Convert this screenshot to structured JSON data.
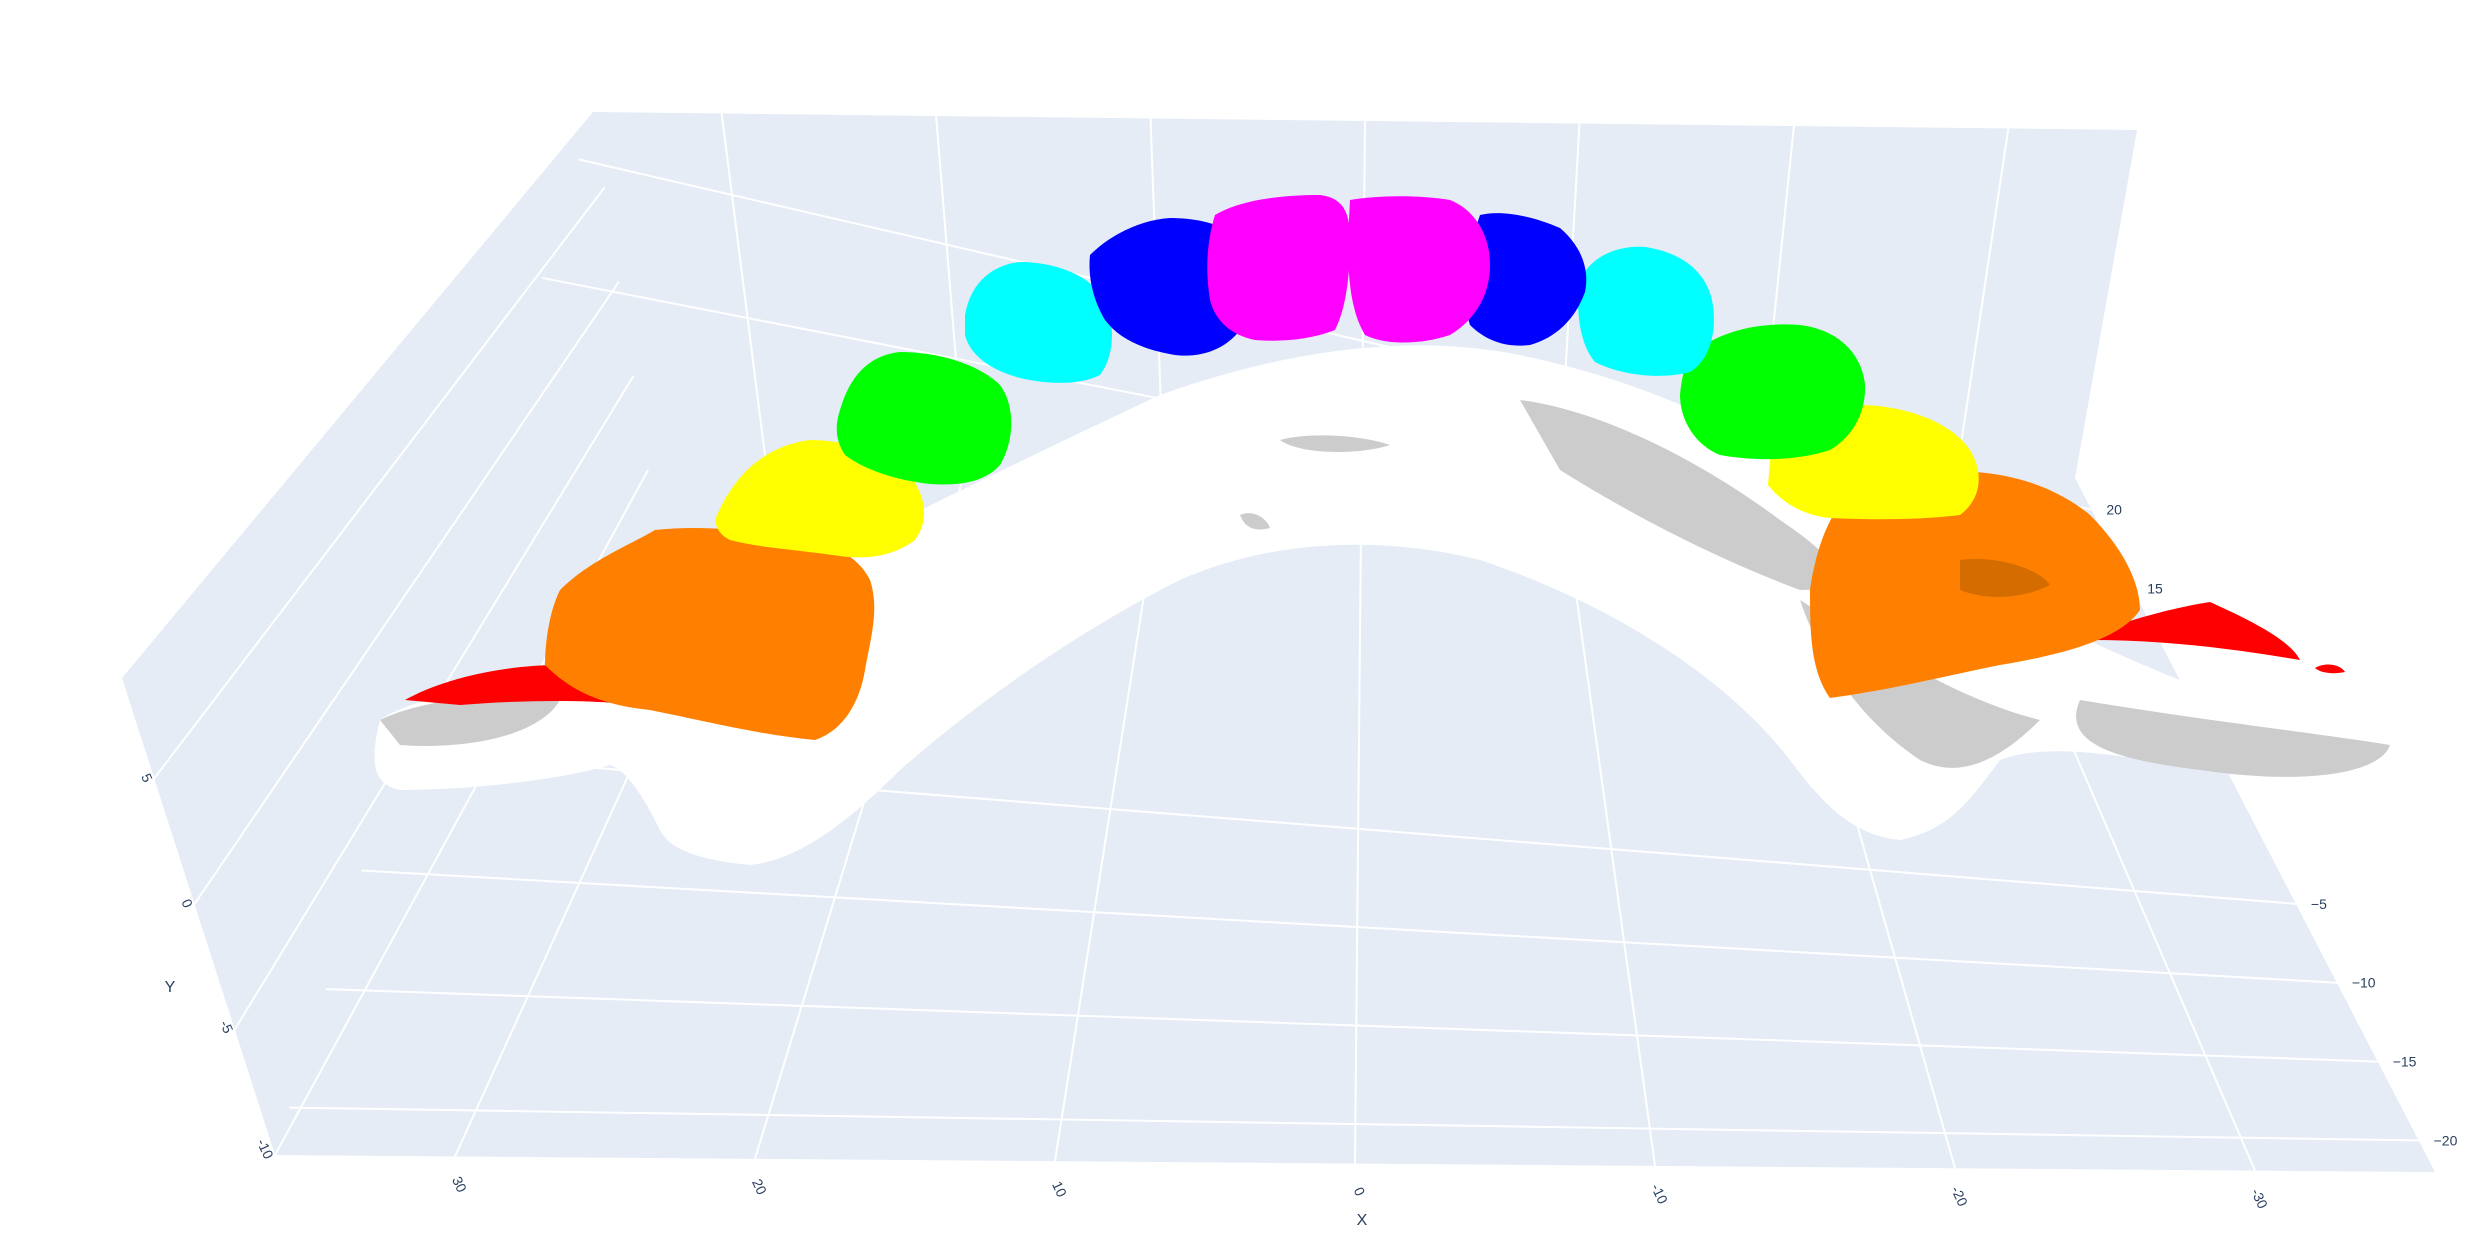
{
  "chart_data": {
    "type": "mesh3d",
    "title": "",
    "axes": {
      "x": {
        "title": "X",
        "ticks": [
          30,
          20,
          10,
          0,
          -10,
          -20,
          -30
        ],
        "range": [
          36,
          -36
        ]
      },
      "y": {
        "title": "Y",
        "ticks": [
          -10,
          -5,
          0,
          5
        ],
        "range": [
          -10,
          9
        ]
      },
      "z": {
        "title": "",
        "ticks": [
          -20,
          -15,
          -10,
          -5,
          15,
          20
        ],
        "range": [
          -22,
          22
        ]
      }
    },
    "grid": true,
    "background_color": "#e5ecf6",
    "gridline_color": "#ffffff",
    "tick_color": "#2a3f5f",
    "series": [
      {
        "name": "",
        "color": "#ffffff",
        "shade": "#cccccc"
      },
      {
        "name": "",
        "color": "#ff0000"
      },
      {
        "name": "",
        "color": "#ff8000"
      },
      {
        "name": "",
        "color": "#ffff00"
      },
      {
        "name": "",
        "color": "#00ff00"
      },
      {
        "name": "",
        "color": "#00ffff"
      },
      {
        "name": "",
        "color": "#0000ff"
      },
      {
        "name": "",
        "color": "#ff00ff"
      }
    ]
  }
}
